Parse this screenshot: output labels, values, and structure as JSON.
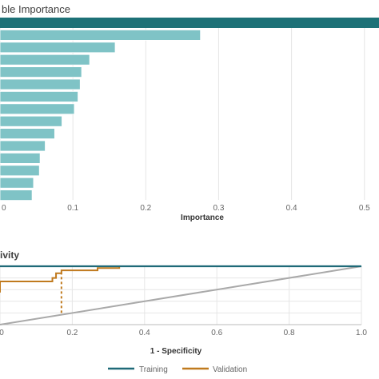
{
  "colors": {
    "header_band": "#1a6f73",
    "bar_fill": "#7fc3c6",
    "bar_top": "#1d7177",
    "training": "#1f6a78",
    "validation": "#c07a1e",
    "diagonal": "#a9a9a9",
    "grid": "#e6e6e6"
  },
  "chart_data": [
    {
      "type": "bar",
      "orientation": "horizontal",
      "title": "ble Importance",
      "xlabel": "Importance",
      "ylabel": "",
      "xlim": [
        0,
        0.52
      ],
      "ticks": [
        {
          "value": 0,
          "label": "0"
        },
        {
          "value": 0.1,
          "label": "0.1"
        },
        {
          "value": 0.2,
          "label": "0.2"
        },
        {
          "value": 0.3,
          "label": "0.3"
        },
        {
          "value": 0.4,
          "label": "0.4"
        },
        {
          "value": 0.5,
          "label": "0.5"
        }
      ],
      "grid": true,
      "values": [
        0.52,
        0.275,
        0.158,
        0.123,
        0.112,
        0.11,
        0.107,
        0.102,
        0.085,
        0.075,
        0.062,
        0.055,
        0.054,
        0.046,
        0.044
      ]
    },
    {
      "type": "line",
      "title": "ivity",
      "xlabel": "1 - Specificity",
      "ylabel": "",
      "xlim": [
        0,
        1
      ],
      "ylim": [
        0,
        1
      ],
      "ticks": [
        {
          "value": 0,
          "label": "0"
        },
        {
          "value": 0.2,
          "label": "0.2"
        },
        {
          "value": 0.4,
          "label": "0.4"
        },
        {
          "value": 0.6,
          "label": "0.6"
        },
        {
          "value": 0.8,
          "label": "0.8"
        },
        {
          "value": 1.0,
          "label": "1.0"
        }
      ],
      "grid": true,
      "legend_position": "bottom",
      "series": [
        {
          "name": "Training",
          "x": [
            0,
            0.33,
            1.0
          ],
          "y": [
            1.0,
            1.0,
            1.0
          ]
        },
        {
          "name": "Validation",
          "x": [
            0,
            0,
            0.145,
            0.145,
            0.155,
            0.155,
            0.17,
            0.17,
            0.27,
            0.27,
            0.33,
            0.33,
            1.0
          ],
          "y": [
            0.55,
            0.74,
            0.74,
            0.8,
            0.8,
            0.88,
            0.88,
            0.93,
            0.93,
            0.97,
            0.97,
            1.0,
            1.0
          ]
        },
        {
          "name": "",
          "x": [
            0,
            1.0
          ],
          "y": [
            0,
            1.0
          ]
        }
      ],
      "reference_line": {
        "x": [
          0.17,
          0.17
        ],
        "y": [
          0.2,
          0.88
        ]
      }
    }
  ]
}
